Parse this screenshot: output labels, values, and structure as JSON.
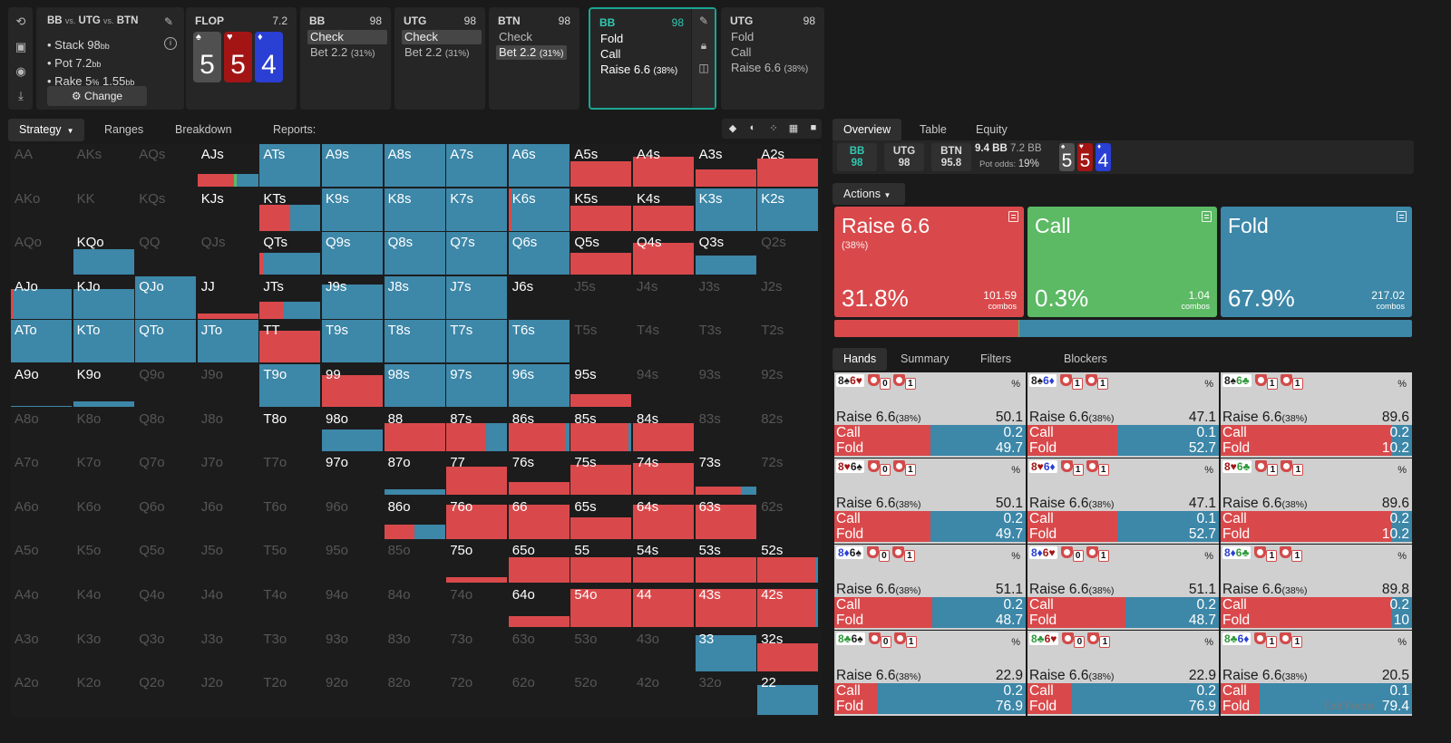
{
  "sidebar": {
    "icons": [
      "undo-icon",
      "save-icon",
      "gamepad-icon",
      "collapse-icon"
    ]
  },
  "scenario": {
    "title_a": "BB",
    "vs1": "vs.",
    "title_b": "UTG",
    "vs2": "vs.",
    "title_c": "BTN",
    "stack_label": "Stack 98",
    "stack_unit": "bb",
    "pot_label": "Pot 7.2",
    "pot_unit": "bb",
    "rake_label": "Rake 5",
    "rake_pct": "%",
    "rake_val": "1.55",
    "rake_unit": "bb",
    "change": "Change"
  },
  "flop": {
    "title": "FLOP",
    "pot": "7.2",
    "cards": [
      {
        "rank": "5",
        "suit": "♠",
        "color": "#505050"
      },
      {
        "rank": "5",
        "suit": "♥",
        "color": "#a31515"
      },
      {
        "rank": "4",
        "suit": "♦",
        "color": "#2a3fd4"
      }
    ]
  },
  "actions": [
    {
      "pos": "BB",
      "stack": "98",
      "opts": [
        {
          "t": "Check",
          "p": "",
          "sel": true
        },
        {
          "t": "Bet 2.2",
          "p": "(31%)",
          "sel": false
        }
      ]
    },
    {
      "pos": "UTG",
      "stack": "98",
      "opts": [
        {
          "t": "Check",
          "p": "",
          "sel": true
        },
        {
          "t": "Bet 2.2",
          "p": "(31%)",
          "sel": false
        }
      ]
    },
    {
      "pos": "BTN",
      "stack": "98",
      "opts": [
        {
          "t": "Check",
          "p": "",
          "sel": false
        },
        {
          "t": "Bet 2.2",
          "p": "(31%)",
          "sel": true
        }
      ]
    },
    {
      "pos": "BB",
      "stack": "98",
      "opts": [
        {
          "t": "Fold",
          "p": "",
          "sel": false
        },
        {
          "t": "Call",
          "p": "",
          "sel": false
        },
        {
          "t": "Raise 6.6",
          "p": "(38%)",
          "sel": false
        }
      ]
    },
    {
      "pos": "UTG",
      "stack": "98",
      "opts": [
        {
          "t": "Fold",
          "p": "",
          "sel": false
        },
        {
          "t": "Call",
          "p": "",
          "sel": false
        },
        {
          "t": "Raise 6.6",
          "p": "(38%)",
          "sel": false
        }
      ]
    }
  ],
  "left_tabs": [
    "Strategy",
    "Ranges",
    "Breakdown",
    "Reports: Flops"
  ],
  "right_tabs": [
    "Overview",
    "Table",
    "Equity chart"
  ],
  "summary": {
    "boxes": [
      {
        "p": "BB",
        "s": "98"
      },
      {
        "p": "UTG",
        "s": "98"
      },
      {
        "p": "BTN",
        "s": "95.8"
      }
    ],
    "pot": "9.4 BB",
    "pot2": "7.2 BB",
    "odds_label": "Pot odds:",
    "odds": "19%",
    "cards": [
      {
        "rank": "5",
        "suit": "♠",
        "color": "#505050"
      },
      {
        "rank": "5",
        "suit": "♥",
        "color": "#a31515"
      },
      {
        "rank": "4",
        "suit": "♦",
        "color": "#2a3fd4"
      }
    ]
  },
  "actions_dropdown": "Actions",
  "big": [
    {
      "name": "Raise 6.6",
      "sub": "(38%)",
      "pct": "31.8%",
      "combos": "101.59",
      "unit": "combos",
      "color": "#d9494b"
    },
    {
      "name": "Call",
      "sub": "",
      "pct": "0.3%",
      "combos": "1.04",
      "unit": "combos",
      "color": "#5cb964"
    },
    {
      "name": "Fold",
      "sub": "",
      "pct": "67.9%",
      "combos": "217.02",
      "unit": "combos",
      "color": "#3d87a8"
    }
  ],
  "distribution": {
    "raise": 31.8,
    "call": 0.3,
    "fold": 67.9
  },
  "hand_tabs": [
    "Hands",
    "Summary",
    "Filters",
    "Blockers"
  ],
  "colors": {
    "raise": "#d9494b",
    "call": "#5cb964",
    "fold": "#3d87a8",
    "teal": "#1ba592"
  },
  "grid": [
    [
      "AA",
      "AKs",
      "AQs",
      "AJs",
      "ATs",
      "A9s",
      "A8s",
      "A7s",
      "A6s",
      "A5s",
      "A4s",
      "A3s",
      "A2s"
    ],
    [
      "AKo",
      "KK",
      "KQs",
      "KJs",
      "KTs",
      "K9s",
      "K8s",
      "K7s",
      "K6s",
      "K5s",
      "K4s",
      "K3s",
      "K2s"
    ],
    [
      "AQo",
      "KQo",
      "QQ",
      "QJs",
      "QTs",
      "Q9s",
      "Q8s",
      "Q7s",
      "Q6s",
      "Q5s",
      "Q4s",
      "Q3s",
      "Q2s"
    ],
    [
      "AJo",
      "KJo",
      "QJo",
      "JJ",
      "JTs",
      "J9s",
      "J8s",
      "J7s",
      "J6s",
      "J5s",
      "J4s",
      "J3s",
      "J2s"
    ],
    [
      "ATo",
      "KTo",
      "QTo",
      "JTo",
      "TT",
      "T9s",
      "T8s",
      "T7s",
      "T6s",
      "T5s",
      "T4s",
      "T3s",
      "T2s"
    ],
    [
      "A9o",
      "K9o",
      "Q9o",
      "J9o",
      "T9o",
      "99",
      "98s",
      "97s",
      "96s",
      "95s",
      "94s",
      "93s",
      "92s"
    ],
    [
      "A8o",
      "K8o",
      "Q8o",
      "J8o",
      "T8o",
      "98o",
      "88",
      "87s",
      "86s",
      "85s",
      "84s",
      "83s",
      "82s"
    ],
    [
      "A7o",
      "K7o",
      "Q7o",
      "J7o",
      "T7o",
      "97o",
      "87o",
      "77",
      "76s",
      "75s",
      "74s",
      "73s",
      "72s"
    ],
    [
      "A6o",
      "K6o",
      "Q6o",
      "J6o",
      "T6o",
      "96o",
      "86o",
      "76o",
      "66",
      "65s",
      "64s",
      "63s",
      "62s"
    ],
    [
      "A5o",
      "K5o",
      "Q5o",
      "J5o",
      "T5o",
      "95o",
      "85o",
      "75o",
      "65o",
      "55",
      "54s",
      "53s",
      "52s"
    ],
    [
      "A4o",
      "K4o",
      "Q4o",
      "J4o",
      "T4o",
      "94o",
      "84o",
      "74o",
      "64o",
      "54o",
      "44",
      "43s",
      "42s"
    ],
    [
      "A3o",
      "K3o",
      "Q3o",
      "J3o",
      "T3o",
      "93o",
      "83o",
      "73o",
      "63o",
      "53o",
      "43o",
      "33",
      "32s"
    ],
    [
      "A2o",
      "K2o",
      "Q2o",
      "J2o",
      "T2o",
      "92o",
      "82o",
      "72o",
      "62o",
      "52o",
      "42o",
      "32o",
      "22"
    ]
  ],
  "grid_fill": [
    [
      null,
      null,
      null,
      [
        0.6,
        0.05,
        0.35,
        0.3
      ],
      [
        0,
        0,
        1,
        0
      ],
      [
        0,
        0,
        1,
        0
      ],
      [
        0,
        0,
        1,
        0
      ],
      [
        0,
        0,
        1,
        0
      ],
      [
        0,
        0,
        1,
        0
      ],
      [
        1,
        0,
        0,
        0.6
      ],
      [
        1,
        0,
        0,
        0.7
      ],
      [
        1,
        0,
        0,
        0.4
      ],
      [
        1,
        0,
        0,
        0.65
      ]
    ],
    [
      null,
      null,
      null,
      [
        0,
        0,
        0,
        0.05
      ],
      [
        0.5,
        0,
        0.5,
        0.62
      ],
      [
        0,
        0,
        1,
        0
      ],
      [
        0,
        0,
        1,
        0
      ],
      [
        0,
        0,
        1,
        0
      ],
      [
        0.05,
        0,
        0.95,
        0
      ],
      [
        1,
        0,
        0,
        0.6
      ],
      [
        1,
        0,
        0,
        0.6
      ],
      [
        0,
        0,
        1,
        0
      ],
      [
        0,
        0,
        1,
        0
      ]
    ],
    [
      null,
      [
        0,
        0,
        1,
        0.6
      ],
      null,
      null,
      [
        0.05,
        0,
        0.95,
        0.5
      ],
      [
        0,
        0,
        1,
        0
      ],
      [
        0,
        0,
        1,
        0
      ],
      [
        0,
        0,
        1,
        0
      ],
      [
        0,
        0,
        1,
        0
      ],
      [
        1,
        0,
        0,
        0.5
      ],
      [
        1,
        0,
        0,
        0.75
      ],
      [
        0,
        0,
        1,
        0.45
      ],
      null
    ],
    [
      [
        0.05,
        0,
        0.95,
        0.7
      ],
      [
        0,
        0,
        1,
        0.7
      ],
      [
        0,
        0,
        1,
        0
      ],
      [
        1,
        0,
        0,
        0.12
      ],
      [
        0.4,
        0,
        0.6,
        0.4
      ],
      [
        0,
        0,
        1,
        0.8
      ],
      [
        0,
        0,
        1,
        0
      ],
      [
        0,
        0,
        1,
        0
      ],
      [
        0,
        0,
        0,
        0
      ],
      null,
      null,
      null,
      null
    ],
    [
      [
        0,
        0,
        1,
        0
      ],
      [
        0,
        0,
        1,
        0
      ],
      [
        0,
        0,
        1,
        0
      ],
      [
        0,
        0,
        1,
        0
      ],
      [
        1,
        0,
        0,
        0.75
      ],
      [
        0,
        0,
        1,
        0
      ],
      [
        0,
        0,
        1,
        0
      ],
      [
        0,
        0,
        1,
        0
      ],
      [
        0,
        0,
        1,
        0
      ],
      null,
      null,
      null,
      null
    ],
    [
      [
        0,
        0,
        1,
        0.03
      ],
      [
        0,
        0,
        1,
        0.12
      ],
      null,
      null,
      [
        0,
        0,
        1,
        0
      ],
      [
        1,
        0,
        0,
        0.75
      ],
      [
        0,
        0,
        1,
        0
      ],
      [
        0,
        0,
        1,
        0
      ],
      [
        0,
        0,
        1,
        0
      ],
      [
        1,
        0,
        0,
        0.3
      ],
      null,
      null,
      null
    ],
    [
      null,
      null,
      null,
      null,
      [
        0,
        0,
        0,
        0
      ],
      [
        0,
        0,
        1,
        0.5
      ],
      [
        1,
        0,
        0,
        0.65
      ],
      [
        0.65,
        0,
        0.35,
        0.65
      ],
      [
        0.95,
        0,
        0.05,
        0.65
      ],
      [
        0.95,
        0,
        0.05,
        0.65
      ],
      [
        1,
        0,
        0,
        0.65
      ],
      null,
      null
    ],
    [
      null,
      null,
      null,
      null,
      null,
      [
        0,
        0,
        0,
        0
      ],
      [
        0,
        0,
        1,
        0.12
      ],
      [
        1,
        0,
        0,
        0.65
      ],
      [
        1,
        0,
        0,
        0.3
      ],
      [
        1,
        0,
        0,
        0.7
      ],
      [
        1,
        0,
        0,
        0.75
      ],
      [
        0.75,
        0,
        0.25,
        0.2
      ],
      null
    ],
    [
      null,
      null,
      null,
      null,
      null,
      null,
      [
        0.5,
        0,
        0.5,
        0.35
      ],
      [
        1,
        0,
        0,
        0.8
      ],
      [
        1,
        0,
        0,
        0.8
      ],
      [
        1,
        0,
        0,
        0.5
      ],
      [
        1,
        0,
        0,
        0.8
      ],
      [
        1,
        0,
        0,
        0.8
      ],
      null
    ],
    [
      null,
      null,
      null,
      null,
      null,
      null,
      null,
      [
        1,
        0,
        0,
        0.12
      ],
      [
        1,
        0,
        0,
        0.6
      ],
      [
        1,
        0,
        0,
        0.6
      ],
      [
        1,
        0,
        0,
        0.6
      ],
      [
        1,
        0,
        0,
        0.6
      ],
      [
        0.95,
        0,
        0.05,
        0.6
      ]
    ],
    [
      null,
      null,
      null,
      null,
      null,
      null,
      null,
      null,
      [
        1,
        0,
        0,
        0.25
      ],
      [
        1,
        0,
        0,
        0.9
      ],
      [
        1,
        0,
        0,
        0.9
      ],
      [
        1,
        0,
        0,
        0.9
      ],
      [
        0.95,
        0,
        0.05,
        0.9
      ]
    ],
    [
      null,
      null,
      null,
      null,
      null,
      null,
      null,
      null,
      null,
      null,
      null,
      [
        0,
        0,
        1,
        0.85
      ],
      [
        1,
        0,
        0,
        0.65
      ]
    ],
    [
      null,
      null,
      null,
      null,
      null,
      null,
      null,
      null,
      null,
      null,
      null,
      null,
      [
        0,
        0,
        1,
        0.7
      ]
    ]
  ],
  "hands": [
    [
      {
        "c1": "8♠",
        "c1c": "#222",
        "c2": "6♥",
        "c2c": "#a31515",
        "n1": "0",
        "n2": "1",
        "raise": "50.1",
        "call": "0.2",
        "fold": "49.7",
        "r": 50.1,
        "f": 49.7
      },
      {
        "c1": "8♠",
        "c1c": "#222",
        "c2": "6♦",
        "c2c": "#2a3fd4",
        "n1": "1",
        "n2": "1",
        "raise": "47.1",
        "call": "0.1",
        "fold": "52.7",
        "r": 47.1,
        "f": 52.7
      },
      {
        "c1": "8♠",
        "c1c": "#222",
        "c2": "6♣",
        "c2c": "#2e9a3a",
        "n1": "1",
        "n2": "1",
        "raise": "89.6",
        "call": "0.2",
        "fold": "10.2",
        "r": 89.6,
        "f": 10.2
      }
    ],
    [
      {
        "c1": "8♥",
        "c1c": "#a31515",
        "c2": "6♠",
        "c2c": "#222",
        "n1": "0",
        "n2": "1",
        "raise": "50.1",
        "call": "0.2",
        "fold": "49.7",
        "r": 50.1,
        "f": 49.7
      },
      {
        "c1": "8♥",
        "c1c": "#a31515",
        "c2": "6♦",
        "c2c": "#2a3fd4",
        "n1": "1",
        "n2": "1",
        "raise": "47.1",
        "call": "0.1",
        "fold": "52.7",
        "r": 47.1,
        "f": 52.7
      },
      {
        "c1": "8♥",
        "c1c": "#a31515",
        "c2": "6♣",
        "c2c": "#2e9a3a",
        "n1": "1",
        "n2": "1",
        "raise": "89.6",
        "call": "0.2",
        "fold": "10.2",
        "r": 89.6,
        "f": 10.2
      }
    ],
    [
      {
        "c1": "8♦",
        "c1c": "#2a3fd4",
        "c2": "6♠",
        "c2c": "#222",
        "n1": "0",
        "n2": "1",
        "raise": "51.1",
        "call": "0.2",
        "fold": "48.7",
        "r": 51.1,
        "f": 48.7
      },
      {
        "c1": "8♦",
        "c1c": "#2a3fd4",
        "c2": "6♥",
        "c2c": "#a31515",
        "n1": "0",
        "n2": "1",
        "raise": "51.1",
        "call": "0.2",
        "fold": "48.7",
        "r": 51.1,
        "f": 48.7
      },
      {
        "c1": "8♦",
        "c1c": "#2a3fd4",
        "c2": "6♣",
        "c2c": "#2e9a3a",
        "n1": "1",
        "n2": "1",
        "raise": "89.8",
        "call": "0.2",
        "fold": "10",
        "r": 89.8,
        "f": 10
      }
    ],
    [
      {
        "c1": "8♣",
        "c1c": "#2e9a3a",
        "c2": "6♠",
        "c2c": "#222",
        "n1": "0",
        "n2": "1",
        "raise": "22.9",
        "call": "0.2",
        "fold": "76.9",
        "r": 22.9,
        "f": 76.9
      },
      {
        "c1": "8♣",
        "c1c": "#2e9a3a",
        "c2": "6♥",
        "c2c": "#a31515",
        "n1": "0",
        "n2": "1",
        "raise": "22.9",
        "call": "0.2",
        "fold": "76.9",
        "r": 22.9,
        "f": 76.9
      },
      {
        "c1": "8♣",
        "c1c": "#2e9a3a",
        "c2": "6♦",
        "c2c": "#2a3fd4",
        "n1": "1",
        "n2": "1",
        "raise": "20.5",
        "call": "0.1",
        "fold": "79.4",
        "r": 20.5,
        "f": 79.4
      }
    ]
  ],
  "hand_labels": {
    "raise": "Raise 6.6",
    "raise_pct": "(38%)",
    "call": "Call",
    "fold": "Fold",
    "pct": "%"
  },
  "watermark": "Exit Focus"
}
